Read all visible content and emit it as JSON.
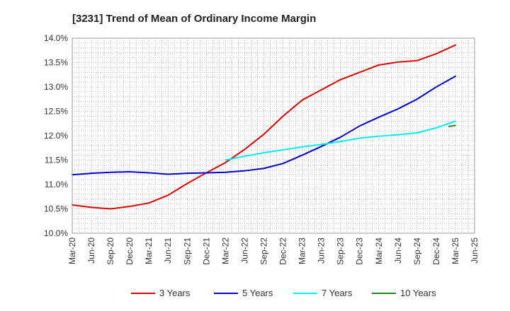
{
  "chart_data": {
    "type": "line",
    "title": "[3231]  Trend of Mean of Ordinary Income Margin",
    "xlabel": "",
    "ylabel": "",
    "ylim": [
      10.0,
      14.0
    ],
    "y_ticks": [
      "10.0%",
      "10.5%",
      "11.0%",
      "11.5%",
      "12.0%",
      "12.5%",
      "13.0%",
      "13.5%",
      "14.0%"
    ],
    "x_ticks": [
      "Mar-20",
      "Jun-20",
      "Sep-20",
      "Dec-20",
      "Mar-21",
      "Jun-21",
      "Sep-21",
      "Dec-21",
      "Mar-22",
      "Jun-22",
      "Sep-22",
      "Dec-22",
      "Mar-23",
      "Jun-23",
      "Sep-23",
      "Dec-23",
      "Mar-24",
      "Jun-24",
      "Sep-24",
      "Dec-24",
      "Mar-25",
      "Jun-25"
    ],
    "grid": true,
    "legend_position": "bottom",
    "series": [
      {
        "name": "3 Years",
        "color": "#dd0000",
        "points": [
          [
            "Mar-20",
            10.58
          ],
          [
            "Jun-20",
            10.53
          ],
          [
            "Sep-20",
            10.5
          ],
          [
            "Dec-20",
            10.55
          ],
          [
            "Mar-21",
            10.62
          ],
          [
            "Jun-21",
            10.78
          ],
          [
            "Sep-21",
            11.02
          ],
          [
            "Dec-21",
            11.24
          ],
          [
            "Mar-22",
            11.45
          ],
          [
            "Jun-22",
            11.72
          ],
          [
            "Sep-22",
            12.03
          ],
          [
            "Dec-22",
            12.4
          ],
          [
            "Mar-23",
            12.73
          ],
          [
            "Jun-23",
            12.94
          ],
          [
            "Sep-23",
            13.15
          ],
          [
            "Dec-23",
            13.3
          ],
          [
            "Mar-24",
            13.45
          ],
          [
            "Jun-24",
            13.51
          ],
          [
            "Sep-24",
            13.54
          ],
          [
            "Dec-24",
            13.68
          ],
          [
            "Mar-25",
            13.86
          ]
        ]
      },
      {
        "name": "5 Years",
        "color": "#0000cc",
        "points": [
          [
            "Mar-20",
            11.2
          ],
          [
            "Jun-20",
            11.23
          ],
          [
            "Sep-20",
            11.25
          ],
          [
            "Dec-20",
            11.26
          ],
          [
            "Mar-21",
            11.24
          ],
          [
            "Jun-21",
            11.21
          ],
          [
            "Sep-21",
            11.23
          ],
          [
            "Dec-21",
            11.24
          ],
          [
            "Mar-22",
            11.25
          ],
          [
            "Jun-22",
            11.28
          ],
          [
            "Sep-22",
            11.33
          ],
          [
            "Dec-22",
            11.43
          ],
          [
            "Mar-23",
            11.6
          ],
          [
            "Jun-23",
            11.78
          ],
          [
            "Sep-23",
            11.97
          ],
          [
            "Dec-23",
            12.2
          ],
          [
            "Mar-24",
            12.38
          ],
          [
            "Jun-24",
            12.55
          ],
          [
            "Sep-24",
            12.75
          ],
          [
            "Dec-24",
            13.0
          ],
          [
            "Mar-25",
            13.22
          ]
        ]
      },
      {
        "name": "7 Years",
        "color": "#00eeee",
        "points": [
          [
            "Mar-22",
            11.5
          ],
          [
            "Jun-22",
            11.58
          ],
          [
            "Sep-22",
            11.65
          ],
          [
            "Dec-22",
            11.71
          ],
          [
            "Mar-23",
            11.77
          ],
          [
            "Jun-23",
            11.82
          ],
          [
            "Sep-23",
            11.88
          ],
          [
            "Dec-23",
            11.95
          ],
          [
            "Mar-24",
            11.99
          ],
          [
            "Jun-24",
            12.02
          ],
          [
            "Sep-24",
            12.06
          ],
          [
            "Dec-24",
            12.16
          ],
          [
            "Mar-25",
            12.3
          ]
        ]
      },
      {
        "name": "10 Years",
        "color": "#228822",
        "points": [
          [
            "Feb-25",
            12.19
          ],
          [
            "Mar-25",
            12.21
          ]
        ]
      }
    ]
  }
}
